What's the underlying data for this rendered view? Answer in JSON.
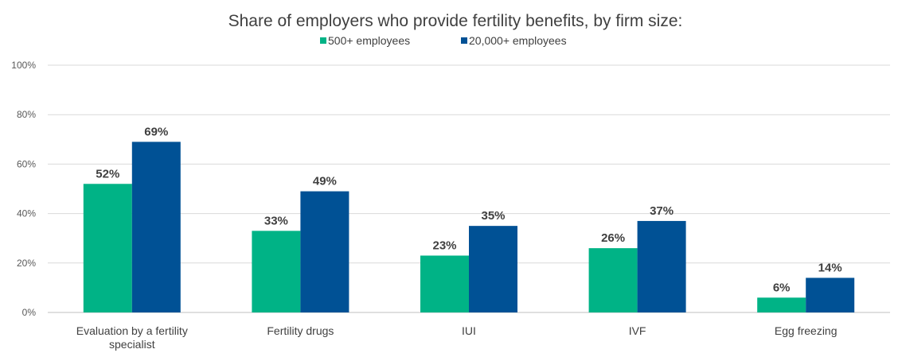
{
  "chart_data": {
    "type": "bar",
    "title": "Share of employers who provide fertility benefits, by firm size:",
    "categories": [
      "Evaluation by a fertility specialist",
      "Fertility drugs",
      "IUI",
      "IVF",
      "Egg freezing"
    ],
    "category_lines": [
      [
        "Evaluation by a fertility",
        "specialist"
      ],
      [
        "Fertility drugs"
      ],
      [
        "IUI"
      ],
      [
        "IVF"
      ],
      [
        "Egg freezing"
      ]
    ],
    "series": [
      {
        "name": "500+ employees",
        "values": [
          52,
          33,
          23,
          26,
          6
        ],
        "color": "#00b386"
      },
      {
        "name": "20,000+ employees",
        "values": [
          69,
          49,
          35,
          37,
          14
        ],
        "color": "#005195"
      }
    ],
    "y_ticks": [
      0,
      20,
      40,
      60,
      80,
      100
    ],
    "ylim": [
      0,
      100
    ],
    "y_tick_suffix": "%",
    "data_label_suffix": "%",
    "grid": true,
    "legend_position": "top-center"
  }
}
